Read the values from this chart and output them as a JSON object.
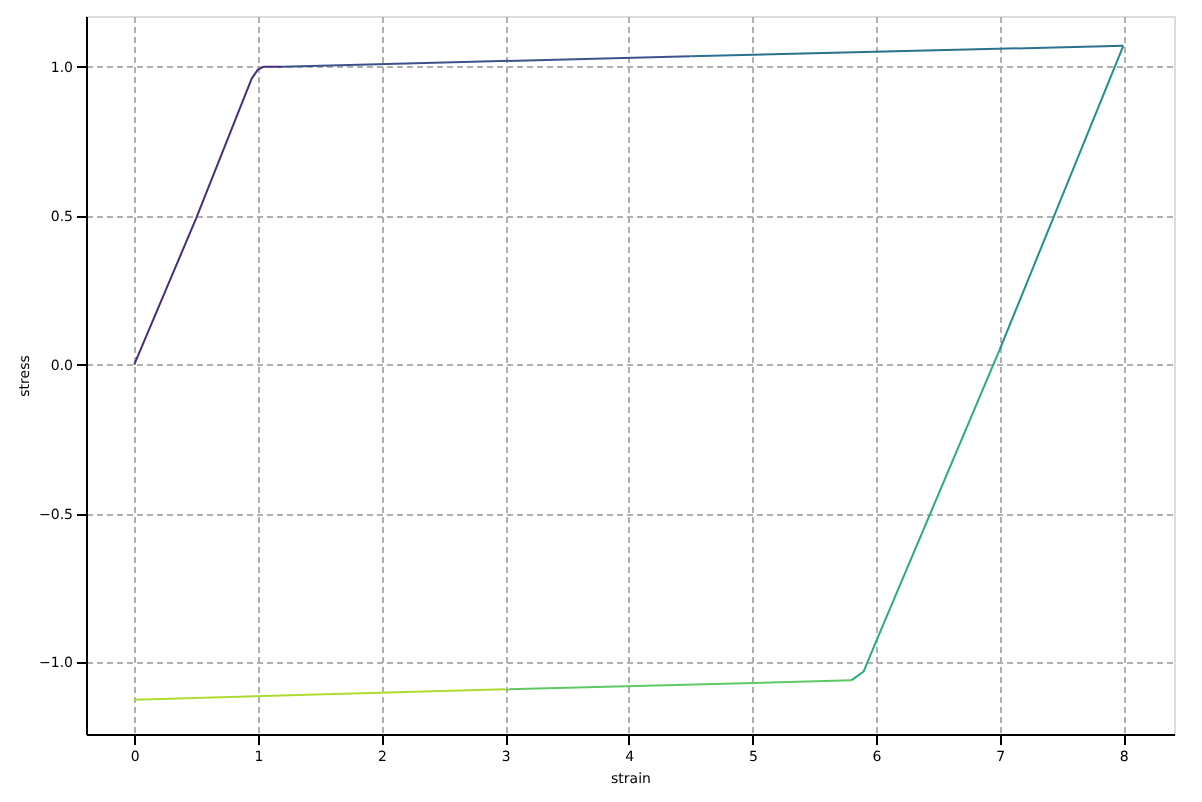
{
  "chart_data": {
    "type": "line",
    "xlabel": "strain",
    "ylabel": "stress",
    "xlim": [
      -0.39,
      8.41
    ],
    "ylim": [
      -1.24,
      1.17
    ],
    "xticks": [
      0,
      1,
      2,
      3,
      4,
      5,
      6,
      7,
      8
    ],
    "yticks": [
      {
        "value": -1,
        "label": "−1.0"
      },
      {
        "value": -0.5,
        "label": "−0.5"
      },
      {
        "value": 0,
        "label": "0.0"
      },
      {
        "value": 0.5,
        "label": "0.5"
      },
      {
        "value": 1,
        "label": "1.0"
      }
    ],
    "grid": true,
    "line_style": "solid",
    "marker": "none",
    "series": [
      {
        "color": "#472d7b",
        "x": [
          0,
          0.5,
          0.95,
          1.0,
          1.05,
          1.2
        ],
        "values": [
          0,
          0.49,
          0.96,
          0.99,
          1.0,
          1.0
        ]
      },
      {
        "color": "#3b528b",
        "x": [
          1.2,
          4.5
        ],
        "values": [
          1.0,
          1.035
        ]
      },
      {
        "color": "#2c718e",
        "x": [
          4.5,
          8.0
        ],
        "values": [
          1.035,
          1.07
        ]
      },
      {
        "color": "#21908d",
        "x": [
          8.0,
          7.0
        ],
        "values": [
          1.07,
          0.05
        ]
      },
      {
        "color": "#27ad81",
        "x": [
          7.0,
          6.0,
          5.9,
          5.8
        ],
        "values": [
          0.05,
          -0.93,
          -1.03,
          -1.06
        ]
      },
      {
        "color": "#5ec962",
        "x": [
          5.8,
          3.0
        ],
        "values": [
          -1.06,
          -1.09
        ]
      },
      {
        "color": "#addc30",
        "x": [
          3.0,
          0.0
        ],
        "values": [
          -1.09,
          -1.125
        ]
      }
    ]
  }
}
